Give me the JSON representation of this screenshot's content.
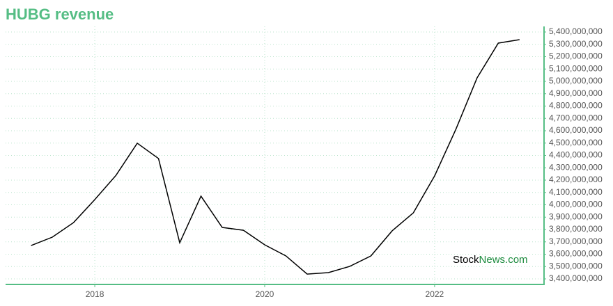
{
  "chart_data": {
    "type": "line",
    "title": "HUBG revenue",
    "x": [
      2017.25,
      2017.5,
      2017.75,
      2018.0,
      2018.25,
      2018.5,
      2018.75,
      2019.0,
      2019.25,
      2019.5,
      2019.75,
      2020.0,
      2020.25,
      2020.5,
      2020.75,
      2021.0,
      2021.25,
      2021.5,
      2021.75,
      2022.0,
      2022.25,
      2022.5,
      2022.75,
      2023.0
    ],
    "values": [
      3670000000,
      3738000000,
      3856000000,
      4042000000,
      4239000000,
      4499000000,
      4375000000,
      3693000000,
      4070000000,
      3817000000,
      3794000000,
      3676000000,
      3586000000,
      3439000000,
      3451000000,
      3501000000,
      3586000000,
      3789000000,
      3935000000,
      4234000000,
      4611000000,
      5028000000,
      5310000000,
      5338000000
    ],
    "color": "#000000",
    "xlim": [
      2016.95,
      2023.28
    ],
    "xticks": [
      2018,
      2020,
      2022
    ],
    "ylim": [
      3355000000,
      5445000000
    ],
    "yticks": [
      {
        "value": 3400000000,
        "label": "3,400,000,000"
      },
      {
        "value": 3500000000,
        "label": "3,500,000,000"
      },
      {
        "value": 3600000000,
        "label": "3,600,000,000"
      },
      {
        "value": 3700000000,
        "label": "3,700,000,000"
      },
      {
        "value": 3800000000,
        "label": "3,800,000,000"
      },
      {
        "value": 3900000000,
        "label": "3,900,000,000"
      },
      {
        "value": 4000000000,
        "label": "4,000,000,000"
      },
      {
        "value": 4100000000,
        "label": "4,100,000,000"
      },
      {
        "value": 4200000000,
        "label": "4,200,000,000"
      },
      {
        "value": 4300000000,
        "label": "4,300,000,000"
      },
      {
        "value": 4400000000,
        "label": "4,400,000,000"
      },
      {
        "value": 4500000000,
        "label": "4,500,000,000"
      },
      {
        "value": 4600000000,
        "label": "4,600,000,000"
      },
      {
        "value": 4700000000,
        "label": "4,700,000,000"
      },
      {
        "value": 4800000000,
        "label": "4,800,000,000"
      },
      {
        "value": 4900000000,
        "label": "4,900,000,000"
      },
      {
        "value": 5000000000,
        "label": "5,000,000,000"
      },
      {
        "value": 5100000000,
        "label": "5,100,000,000"
      },
      {
        "value": 5200000000,
        "label": "5,200,000,000"
      },
      {
        "value": 5300000000,
        "label": "5,300,000,000"
      },
      {
        "value": 5400000000,
        "label": "5,400,000,000"
      }
    ],
    "grid": true,
    "watermark": [
      "Stock",
      "News.com"
    ]
  }
}
